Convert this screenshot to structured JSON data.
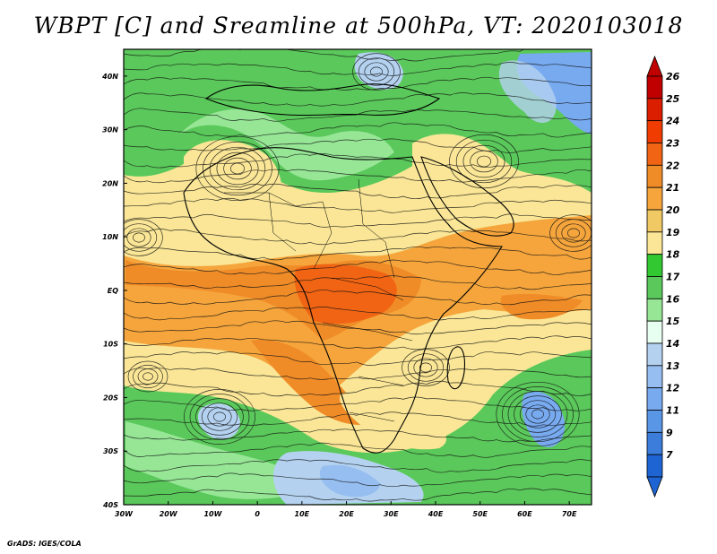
{
  "title": "WBPT [C] and Sreamline at 500hPa, VT: 2020103018",
  "credit": "GrADS: IGES/COLA",
  "map": {
    "lon_min": -30,
    "lon_max": 75,
    "lat_min": -40,
    "lat_max": 45,
    "lat_labels": [
      {
        "value": 40,
        "text": "40N"
      },
      {
        "value": 30,
        "text": "30N"
      },
      {
        "value": 20,
        "text": "20N"
      },
      {
        "value": 10,
        "text": "10N"
      },
      {
        "value": 0,
        "text": "EQ"
      },
      {
        "value": -10,
        "text": "10S"
      },
      {
        "value": -20,
        "text": "20S"
      },
      {
        "value": -30,
        "text": "30S"
      },
      {
        "value": -40,
        "text": "40S"
      }
    ],
    "lon_labels": [
      {
        "value": -30,
        "text": "30W"
      },
      {
        "value": -20,
        "text": "20W"
      },
      {
        "value": -10,
        "text": "10W"
      },
      {
        "value": 0,
        "text": "0"
      },
      {
        "value": 10,
        "text": "10E"
      },
      {
        "value": 20,
        "text": "20E"
      },
      {
        "value": 30,
        "text": "30E"
      },
      {
        "value": 40,
        "text": "40E"
      },
      {
        "value": 50,
        "text": "50E"
      },
      {
        "value": 60,
        "text": "60E"
      },
      {
        "value": 70,
        "text": "70E"
      }
    ]
  },
  "colorbar": {
    "labels": [
      "26",
      "25",
      "24",
      "23",
      "22",
      "21",
      "20",
      "19",
      "18",
      "17",
      "16",
      "15",
      "14",
      "13",
      "12",
      "11",
      "9",
      "7"
    ],
    "colors": [
      "#c00000",
      "#dc1e00",
      "#f03c00",
      "#f06414",
      "#f08c28",
      "#f5a53c",
      "#f0c864",
      "#fae696",
      "#32c832",
      "#5ac85a",
      "#96e696",
      "#e6fff0",
      "#b4d2f0",
      "#96bef0",
      "#78aaf0",
      "#5a96e6",
      "#3c7ddc",
      "#1e64d2"
    ]
  }
}
